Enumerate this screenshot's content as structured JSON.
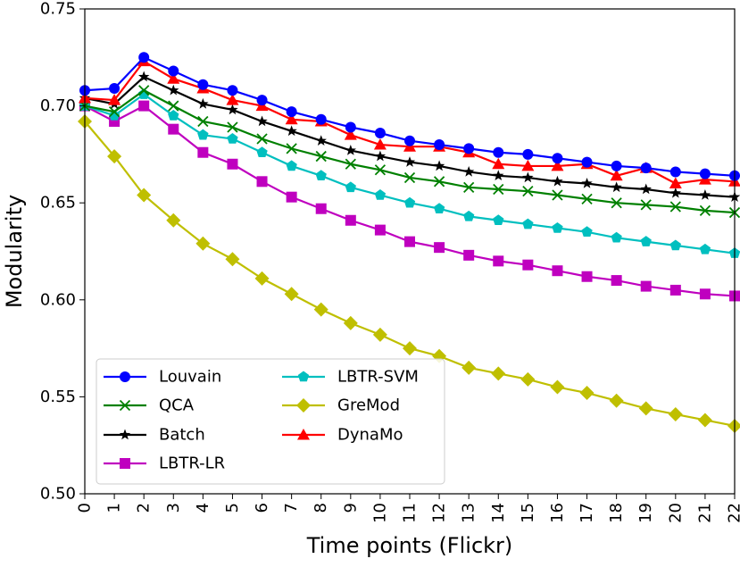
{
  "chart_data": {
    "type": "line",
    "title": "",
    "xlabel": "Time points (Flickr)",
    "ylabel": "Modularity",
    "xlim": [
      0,
      22
    ],
    "ylim": [
      0.5,
      0.75
    ],
    "x": [
      0,
      1,
      2,
      3,
      4,
      5,
      6,
      7,
      8,
      9,
      10,
      11,
      12,
      13,
      14,
      15,
      16,
      17,
      18,
      19,
      20,
      21,
      22
    ],
    "xticks": [
      "0",
      "1",
      "2",
      "3",
      "4",
      "5",
      "6",
      "7",
      "8",
      "9",
      "10",
      "11",
      "12",
      "13",
      "14",
      "15",
      "16",
      "17",
      "18",
      "19",
      "20",
      "21",
      "22"
    ],
    "yticks": [
      "0.50",
      "0.55",
      "0.60",
      "0.65",
      "0.70",
      "0.75"
    ],
    "ytick_values": [
      0.5,
      0.55,
      0.6,
      0.65,
      0.7,
      0.75
    ],
    "grid": false,
    "legend_position": "lower-left",
    "series": [
      {
        "name": "Louvain",
        "color": "#0000ff",
        "marker": "circle",
        "values": [
          0.708,
          0.709,
          0.725,
          0.718,
          0.711,
          0.708,
          0.703,
          0.697,
          0.693,
          0.689,
          0.686,
          0.682,
          0.68,
          0.678,
          0.676,
          0.675,
          0.673,
          0.671,
          0.669,
          0.668,
          0.666,
          0.665,
          0.664
        ]
      },
      {
        "name": "QCA",
        "color": "#008000",
        "marker": "x",
        "values": [
          0.7,
          0.697,
          0.708,
          0.7,
          0.692,
          0.689,
          0.683,
          0.678,
          0.674,
          0.67,
          0.667,
          0.663,
          0.661,
          0.658,
          0.657,
          0.656,
          0.654,
          0.652,
          0.65,
          0.649,
          0.648,
          0.646,
          0.645
        ]
      },
      {
        "name": "Batch",
        "color": "#000000",
        "marker": "star",
        "values": [
          0.704,
          0.701,
          0.715,
          0.708,
          0.701,
          0.698,
          0.692,
          0.687,
          0.682,
          0.677,
          0.674,
          0.671,
          0.669,
          0.666,
          0.664,
          0.663,
          0.661,
          0.66,
          0.658,
          0.657,
          0.655,
          0.654,
          0.653
        ]
      },
      {
        "name": "LBTR-LR",
        "color": "#bf00bf",
        "marker": "square",
        "values": [
          0.7,
          0.692,
          0.7,
          0.688,
          0.676,
          0.67,
          0.661,
          0.653,
          0.647,
          0.641,
          0.636,
          0.63,
          0.627,
          0.623,
          0.62,
          0.618,
          0.615,
          0.612,
          0.61,
          0.607,
          0.605,
          0.603,
          0.602
        ]
      },
      {
        "name": "LBTR-SVM",
        "color": "#00bfbf",
        "marker": "pentagon",
        "values": [
          0.7,
          0.695,
          0.706,
          0.695,
          0.685,
          0.683,
          0.676,
          0.669,
          0.664,
          0.658,
          0.654,
          0.65,
          0.647,
          0.643,
          0.641,
          0.639,
          0.637,
          0.635,
          0.632,
          0.63,
          0.628,
          0.626,
          0.624
        ]
      },
      {
        "name": "GreMod",
        "color": "#bfbf00",
        "marker": "diamond",
        "values": [
          0.692,
          0.674,
          0.654,
          0.641,
          0.629,
          0.621,
          0.611,
          0.603,
          0.595,
          0.588,
          0.582,
          0.575,
          0.571,
          0.565,
          0.562,
          0.559,
          0.555,
          0.552,
          0.548,
          0.544,
          0.541,
          0.538,
          0.535
        ]
      },
      {
        "name": "DynaMo",
        "color": "#ff0000",
        "marker": "triangle",
        "values": [
          0.704,
          0.703,
          0.723,
          0.714,
          0.709,
          0.703,
          0.7,
          0.693,
          0.692,
          0.685,
          0.68,
          0.679,
          0.679,
          0.676,
          0.67,
          0.669,
          0.669,
          0.67,
          0.664,
          0.668,
          0.66,
          0.662,
          0.661
        ]
      }
    ]
  }
}
